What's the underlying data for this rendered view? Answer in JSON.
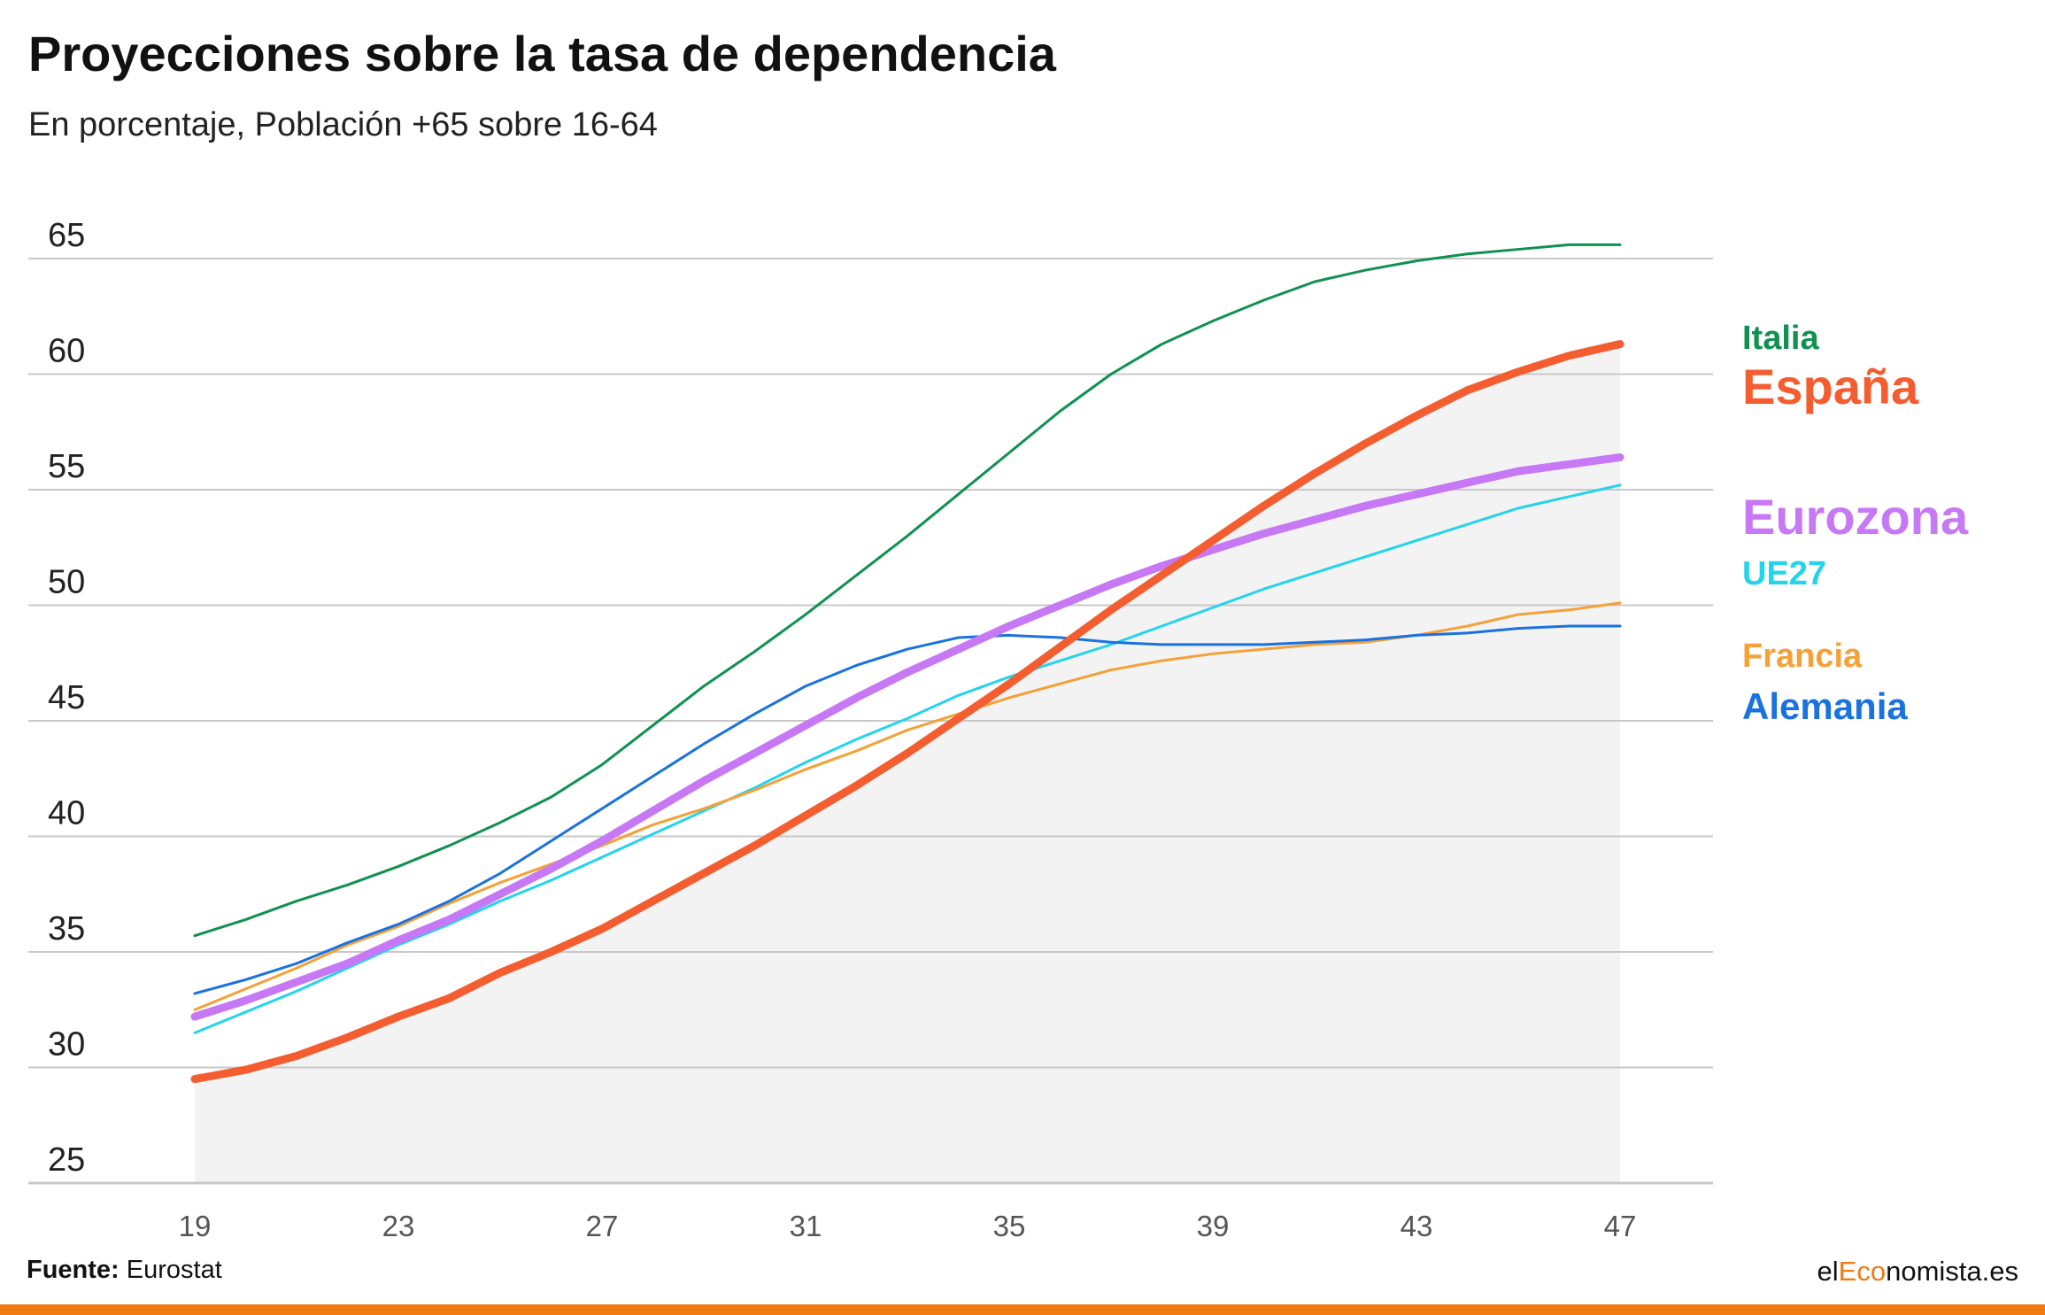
{
  "header": {
    "title": "Proyecciones sobre la tasa de dependencia",
    "subtitle": "En porcentaje, Población +65 sobre 16-64"
  },
  "footer": {
    "source_label": "Fuente:",
    "source_value": "Eurostat",
    "brand_prefix": "el",
    "brand_accent": "Eco",
    "brand_suffix": "nomista.es"
  },
  "colors": {
    "accent": "#f07a13",
    "area_fill": "#f3f3f3",
    "grid": "#c8c8c8"
  },
  "chart_data": {
    "type": "line",
    "title": "Proyecciones sobre la tasa de dependencia",
    "subtitle": "En porcentaje, Población +65 sobre 16-64",
    "x": [
      19,
      20,
      21,
      22,
      23,
      24,
      25,
      26,
      27,
      28,
      29,
      30,
      31,
      32,
      33,
      34,
      35,
      36,
      37,
      38,
      39,
      40,
      41,
      42,
      43,
      44,
      45,
      46,
      47
    ],
    "xticks": [
      "19",
      "23",
      "27",
      "31",
      "35",
      "39",
      "43",
      "47"
    ],
    "xtick_values": [
      19,
      23,
      27,
      31,
      35,
      39,
      43,
      47
    ],
    "yticks": [
      "25",
      "30",
      "35",
      "40",
      "45",
      "50",
      "55",
      "60",
      "65"
    ],
    "ylim": [
      25,
      65
    ],
    "xlim": [
      19,
      47
    ],
    "grid": true,
    "area_under": "España",
    "legend": "right, labels at line ends",
    "series": [
      {
        "name": "Italia",
        "color": "#0f9150",
        "width": 3,
        "values": [
          35.7,
          36.4,
          37.2,
          37.9,
          38.7,
          39.6,
          40.6,
          41.7,
          43.1,
          44.8,
          46.5,
          48.0,
          49.6,
          51.3,
          53.0,
          54.8,
          56.6,
          58.4,
          60.0,
          61.3,
          62.3,
          63.2,
          64.0,
          64.5,
          64.9,
          65.2,
          65.4,
          65.6,
          65.6
        ]
      },
      {
        "name": "España",
        "color": "#f35d30",
        "width": 9,
        "values": [
          29.5,
          29.9,
          30.5,
          31.3,
          32.2,
          33.0,
          34.1,
          35.0,
          36.0,
          37.2,
          38.4,
          39.6,
          40.9,
          42.2,
          43.6,
          45.1,
          46.6,
          48.2,
          49.8,
          51.3,
          52.8,
          54.3,
          55.7,
          57.0,
          58.2,
          59.3,
          60.1,
          60.8,
          61.3
        ]
      },
      {
        "name": "Eurozona",
        "color": "#c678f5",
        "width": 9,
        "values": [
          32.2,
          32.9,
          33.7,
          34.5,
          35.5,
          36.4,
          37.5,
          38.6,
          39.8,
          41.1,
          42.4,
          43.6,
          44.8,
          46.0,
          47.1,
          48.1,
          49.1,
          50.0,
          50.9,
          51.7,
          52.4,
          53.1,
          53.7,
          54.3,
          54.8,
          55.3,
          55.8,
          56.1,
          56.4
        ]
      },
      {
        "name": "UE27",
        "color": "#24d4ec",
        "width": 3,
        "values": [
          31.5,
          32.4,
          33.3,
          34.3,
          35.3,
          36.2,
          37.2,
          38.1,
          39.1,
          40.1,
          41.1,
          42.1,
          43.2,
          44.2,
          45.1,
          46.1,
          46.9,
          47.6,
          48.3,
          49.1,
          49.9,
          50.7,
          51.4,
          52.1,
          52.8,
          53.5,
          54.2,
          54.7,
          55.2
        ]
      },
      {
        "name": "Francia",
        "color": "#f5a137",
        "width": 3,
        "values": [
          32.5,
          33.4,
          34.3,
          35.3,
          36.1,
          37.1,
          38.0,
          38.8,
          39.6,
          40.5,
          41.2,
          42.0,
          42.9,
          43.7,
          44.6,
          45.3,
          46.0,
          46.6,
          47.2,
          47.6,
          47.9,
          48.1,
          48.3,
          48.4,
          48.7,
          49.1,
          49.6,
          49.8,
          50.1
        ]
      },
      {
        "name": "Alemania",
        "color": "#1a72e0",
        "width": 3,
        "values": [
          33.2,
          33.8,
          34.5,
          35.4,
          36.2,
          37.2,
          38.4,
          39.8,
          41.2,
          42.6,
          44.0,
          45.3,
          46.5,
          47.4,
          48.1,
          48.6,
          48.7,
          48.6,
          48.4,
          48.3,
          48.3,
          48.3,
          48.4,
          48.5,
          48.7,
          48.8,
          49.0,
          49.1,
          49.1
        ]
      }
    ],
    "labels": [
      {
        "series": "Italia",
        "text": "Italia"
      },
      {
        "series": "España",
        "text": "España"
      },
      {
        "series": "Eurozona",
        "text": "Eurozona"
      },
      {
        "series": "UE27",
        "text": "UE27"
      },
      {
        "series": "Francia",
        "text": "Francia"
      },
      {
        "series": "Alemania",
        "text": "Alemania"
      }
    ]
  }
}
